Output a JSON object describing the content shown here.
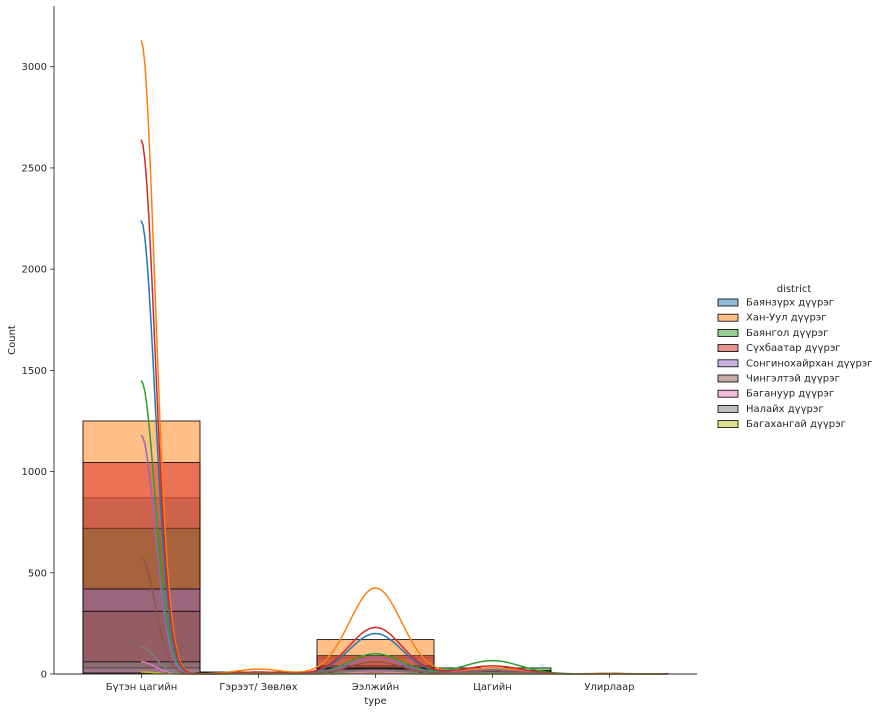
{
  "chart_data": {
    "type": "bar",
    "xlabel": "type",
    "ylabel": "Count",
    "ylim": [
      0,
      3300
    ],
    "yticks": [
      0,
      500,
      1000,
      1500,
      2000,
      2500,
      3000
    ],
    "categories": [
      "Бүтэн цагийн",
      "Гэрээт/ Зөвлөх",
      "Ээлжийн",
      "Цагийн",
      "Улирлаар"
    ],
    "legend": {
      "title": "district",
      "placement": "right"
    },
    "series": [
      {
        "name": "Баянзүрх дүүрэг",
        "color": "#1f77b4",
        "values": [
          870,
          4,
          80,
          12,
          1
        ],
        "kde_peaks": [
          2240,
          5,
          200,
          20,
          2
        ]
      },
      {
        "name": "Хан-Уул дүүрэг",
        "color": "#ff7f0e",
        "values": [
          1250,
          10,
          170,
          18,
          2
        ],
        "kde_peaks": [
          3130,
          24,
          425,
          30,
          3
        ]
      },
      {
        "name": "Баянгол дүүрэг",
        "color": "#2ca02c",
        "values": [
          720,
          3,
          40,
          30,
          1
        ],
        "kde_peaks": [
          1450,
          6,
          100,
          66,
          2
        ]
      },
      {
        "name": "Сүхбаатар дүүрэг",
        "color": "#d62728",
        "values": [
          1045,
          5,
          90,
          15,
          1
        ],
        "kde_peaks": [
          2640,
          10,
          230,
          40,
          2
        ]
      },
      {
        "name": "Сонгинохайрхан дүүрэг",
        "color": "#9467bd",
        "values": [
          420,
          2,
          30,
          10,
          0
        ],
        "kde_peaks": [
          1180,
          4,
          80,
          20,
          1
        ]
      },
      {
        "name": "Чингэлтэй дүүрэг",
        "color": "#8c564b",
        "values": [
          310,
          2,
          25,
          8,
          0
        ],
        "kde_peaks": [
          575,
          4,
          60,
          15,
          1
        ]
      },
      {
        "name": "Багануур дүүрэг",
        "color": "#e377c2",
        "values": [
          30,
          1,
          5,
          2,
          0
        ],
        "kde_peaks": [
          60,
          2,
          10,
          5,
          0
        ]
      },
      {
        "name": "Налайх дүүрэг",
        "color": "#7f7f7f",
        "values": [
          60,
          1,
          8,
          3,
          0
        ],
        "kde_peaks": [
          135,
          2,
          20,
          6,
          0
        ]
      },
      {
        "name": "Багахангай дүүрэг",
        "color": "#bcbd22",
        "values": [
          5,
          0,
          1,
          0,
          0
        ],
        "kde_peaks": [
          10,
          0,
          2,
          0,
          0
        ]
      }
    ]
  }
}
